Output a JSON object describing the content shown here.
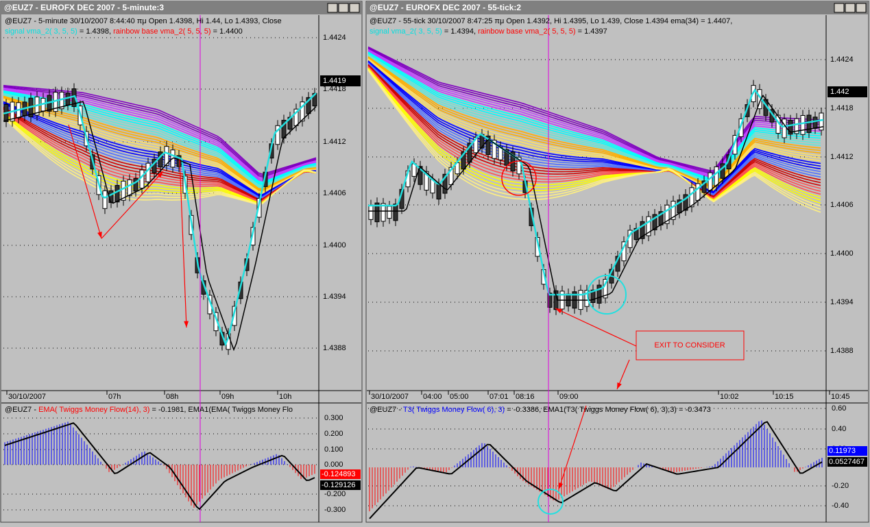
{
  "windows": [
    {
      "title": "@EUZ7 - EUROFX DEC 2007 - 5-minute:3",
      "header_line1": "@EUZ7 - 5-minute 30/10/2007 8:44:40 πμ Open 1.4398, Hi 1.44, Lo 1.4393, Close",
      "header_line2": [
        {
          "text": "signal vma_2( 3, 5, 5)",
          "color": "#00e0e0"
        },
        {
          "text": " = 1.4398, ",
          "color": "#000000"
        },
        {
          "text": "rainbow base vma_2( 5, 5, 5)",
          "color": "#ff0000"
        },
        {
          "text": " = 1.4400",
          "color": "#000000"
        }
      ],
      "price_labels": [
        "1.4424",
        "1.4418",
        "1.4412",
        "1.4406",
        "1.4400",
        "1.4394",
        "1.4388"
      ],
      "last_price": "1.4419",
      "time_labels": [
        "30/10/2007",
        "07h",
        "08h",
        "09h",
        "10h"
      ],
      "indicator_header": [
        {
          "text": "@EUZ7 - ",
          "color": "#000000"
        },
        {
          "text": "EMA( Twiggs Money Flow(14), 3)",
          "color": "#ff0000"
        },
        {
          "text": " = -0.1981, EMA1(EMA( Twiggs Money Flo",
          "color": "#000000"
        }
      ],
      "indicator_labels": [
        "0.300",
        "0.200",
        "0.100",
        "0.000",
        "-0.200",
        "-0.300"
      ],
      "indicator_values": [
        {
          "text": "-0.124893",
          "color": "#ff0000"
        },
        {
          "text": "-0.129126",
          "color": "#000000"
        }
      ]
    },
    {
      "title": "@EUZ7 - EUROFX DEC 2007 - 55-tick:2",
      "header_line1": "@EUZ7 - 55-tick 30/10/2007 8:47:25 πμ Open 1.4392, Hi 1.4395, Lo 1.439, Close 1.4394 ema(34) = 1.4407,",
      "header_line2": [
        {
          "text": "signal vma_2( 3, 5, 5)",
          "color": "#00e0e0"
        },
        {
          "text": " = 1.4394, ",
          "color": "#000000"
        },
        {
          "text": "rainbow base vma_2( 5, 5, 5)",
          "color": "#ff0000"
        },
        {
          "text": " = 1.4397",
          "color": "#000000"
        }
      ],
      "price_labels": [
        "1.4424",
        "1.4418",
        "1.4412",
        "1.4406",
        "1.4400",
        "1.4394",
        "1.4388"
      ],
      "last_price": "1.442",
      "time_labels": [
        "30/10/2007",
        "04:00",
        "05:00",
        "07:01",
        "08:16",
        "09:00",
        "10:02",
        "10:15",
        "10:45"
      ],
      "indicator_header": [
        {
          "text": "@EUZ7 - ",
          "color": "#000000"
        },
        {
          "text": "T3( Twiggs Money Flow( 6), 3)",
          "color": "#0000ff"
        },
        {
          "text": " = -0.3386, EMA1(T3( Twiggs Money Flow( 6), 3),3) = -0.3473",
          "color": "#000000"
        }
      ],
      "indicator_labels": [
        "0.60",
        "0.40",
        "0.20",
        "-0.20",
        "-0.40"
      ],
      "indicator_values": [
        {
          "text": "0.11973",
          "color": "#0000ff"
        },
        {
          "text": "0.0527467",
          "color": "#000000"
        }
      ]
    }
  ],
  "annotation": "EXIT TO CONSIDER"
}
